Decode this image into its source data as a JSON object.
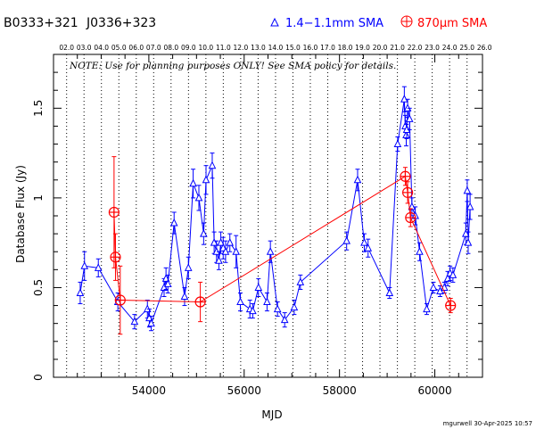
{
  "header": {
    "source": "B0333+321",
    "alias": "J0336+323",
    "legend_1mm": "1.4−1.1mm SMA",
    "legend_870": "870μm SMA"
  },
  "note": "NOTE: Use for planning purposes ONLY!  See SMA policy for details.",
  "footer": "mgurwell 30-Apr-2025 10:57",
  "colors": {
    "series_1mm": "#0000ff",
    "series_870": "#ff0000",
    "axis": "#000000"
  },
  "chart_data": {
    "type": "scatter",
    "xlabel": "MJD",
    "ylabel": "Database Flux (Jy)",
    "xlim": [
      52000,
      61000
    ],
    "ylim": [
      0,
      1.8
    ],
    "x_ticks": [
      54000,
      56000,
      58000,
      60000
    ],
    "x_tick_labels": [
      "54000",
      "56000",
      "58000",
      "60000"
    ],
    "y_ticks": [
      0,
      0.5,
      1,
      1.5
    ],
    "y_tick_labels": [
      "0",
      "0.5",
      "1",
      "1.5"
    ],
    "top_axis_labels": [
      "02.0",
      "03.0",
      "04.0",
      "05.0",
      "06.0",
      "07.0",
      "08.0",
      "09.0",
      "10.0",
      "11.0",
      "12.0",
      "13.0",
      "14.0",
      "15.0",
      "16.0",
      "17.0",
      "18.0",
      "19.0",
      "20.0",
      "21.0",
      "22.0",
      "23.0",
      "24.0",
      "25.0",
      "26.0"
    ],
    "top_axis_mjd": [
      52275,
      52640,
      53005,
      53371,
      53736,
      54101,
      54466,
      54832,
      55197,
      55562,
      55927,
      56293,
      56658,
      57023,
      57388,
      57754,
      58119,
      58484,
      58849,
      59215,
      59580,
      59945,
      60310,
      60676,
      61041
    ],
    "grid": "vertical dotted at year boundaries",
    "series": [
      {
        "name": "1.4−1.1mm SMA",
        "marker": "triangle",
        "x": [
          52560,
          52650,
          52940,
          53350,
          53700,
          53970,
          54010,
          54050,
          54320,
          54360,
          54400,
          54530,
          54750,
          54830,
          54930,
          55050,
          55150,
          55200,
          55330,
          55370,
          55420,
          55470,
          55510,
          55560,
          55610,
          55700,
          55830,
          55920,
          56120,
          56180,
          56300,
          56480,
          56550,
          56700,
          56850,
          57050,
          57180,
          58150,
          58380,
          58520,
          58600,
          59050,
          59220,
          59360,
          59380,
          59400,
          59410,
          59430,
          59470,
          59520,
          59590,
          59680,
          59830,
          59970,
          60110,
          60200,
          60270,
          60320,
          60380,
          60650,
          60680,
          60700,
          60740
        ],
        "y": [
          0.47,
          0.62,
          0.61,
          0.42,
          0.31,
          0.38,
          0.33,
          0.3,
          0.5,
          0.55,
          0.52,
          0.86,
          0.45,
          0.61,
          1.08,
          1.0,
          0.8,
          1.1,
          1.18,
          0.75,
          0.7,
          0.65,
          0.75,
          0.72,
          0.7,
          0.75,
          0.7,
          0.42,
          0.38,
          0.37,
          0.5,
          0.42,
          0.7,
          0.38,
          0.32,
          0.39,
          0.53,
          0.76,
          1.1,
          0.75,
          0.72,
          0.47,
          1.3,
          1.55,
          1.4,
          1.35,
          1.38,
          1.5,
          1.44,
          0.95,
          0.9,
          0.7,
          0.38,
          0.5,
          0.48,
          0.5,
          0.55,
          0.58,
          0.57,
          0.8,
          1.04,
          0.75,
          0.95
        ],
        "err": [
          0.06,
          0.08,
          0.05,
          0.05,
          0.04,
          0.05,
          0.05,
          0.04,
          0.05,
          0.06,
          0.05,
          0.06,
          0.05,
          0.06,
          0.08,
          0.07,
          0.06,
          0.08,
          0.07,
          0.06,
          0.06,
          0.05,
          0.06,
          0.06,
          0.06,
          0.05,
          0.09,
          0.05,
          0.05,
          0.04,
          0.05,
          0.05,
          0.06,
          0.04,
          0.04,
          0.04,
          0.04,
          0.05,
          0.06,
          0.05,
          0.05,
          0.03,
          0.04,
          0.07,
          0.06,
          0.06,
          0.05,
          0.05,
          0.06,
          0.05,
          0.05,
          0.05,
          0.03,
          0.03,
          0.03,
          0.03,
          0.04,
          0.04,
          0.04,
          0.06,
          0.06,
          0.06,
          0.07
        ]
      },
      {
        "name": "870μm SMA",
        "marker": "circle-plus",
        "x": [
          53270,
          53300,
          53400,
          55080,
          59380,
          59430,
          59490,
          60330
        ],
        "y": [
          0.92,
          0.67,
          0.43,
          0.42,
          1.12,
          1.03,
          0.89,
          0.4
        ],
        "err": [
          0.31,
          0.13,
          0.19,
          0.11,
          0.05,
          0.06,
          0.05,
          0.04
        ]
      }
    ]
  }
}
